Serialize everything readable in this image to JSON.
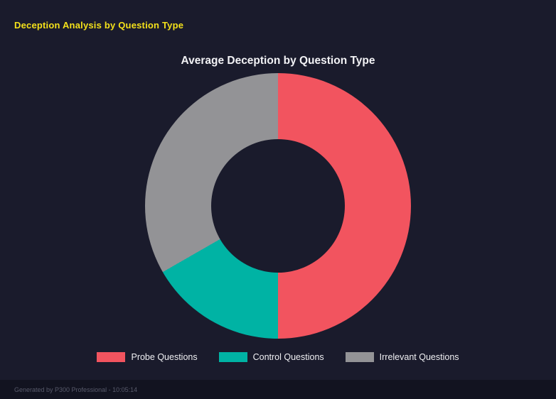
{
  "page": {
    "header_title": "Deception Analysis by Question Type",
    "footer_text": "Generated by P300 Professional - 10:05:14"
  },
  "chart_data": {
    "type": "pie",
    "variant": "donut",
    "title": "Average Deception by Question Type",
    "labels": [
      "Probe Questions",
      "Control Questions",
      "Irrelevant Questions"
    ],
    "values": [
      50,
      16.7,
      33.3
    ],
    "unit": "percent_of_total",
    "colors": [
      "#f2545f",
      "#00b3a4",
      "#939396"
    ],
    "hole_ratio": 0.5,
    "start_angle_deg": 0,
    "direction": "clockwise",
    "legend_position": "bottom",
    "background": "#1a1b2c"
  }
}
